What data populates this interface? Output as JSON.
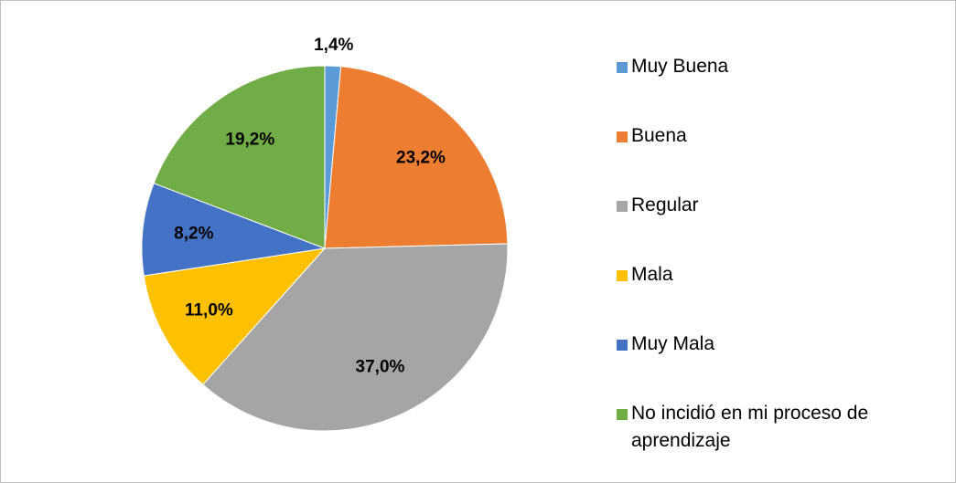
{
  "chart_data": {
    "type": "pie",
    "categories": [
      "Muy Buena",
      "Buena",
      "Regular",
      "Mala",
      "Muy Mala",
      "No incidió en mi proceso de aprendizaje"
    ],
    "values": [
      1.4,
      23.2,
      37.0,
      11.0,
      8.2,
      19.2
    ],
    "value_labels": [
      "1,4%",
      "23,2%",
      "37,0%",
      "11,0%",
      "8,2%",
      "19,2%"
    ],
    "colors": [
      "#5b9bd5",
      "#ed7d31",
      "#a5a5a5",
      "#ffc000",
      "#4472c4",
      "#70ad47"
    ],
    "legend": "right"
  }
}
